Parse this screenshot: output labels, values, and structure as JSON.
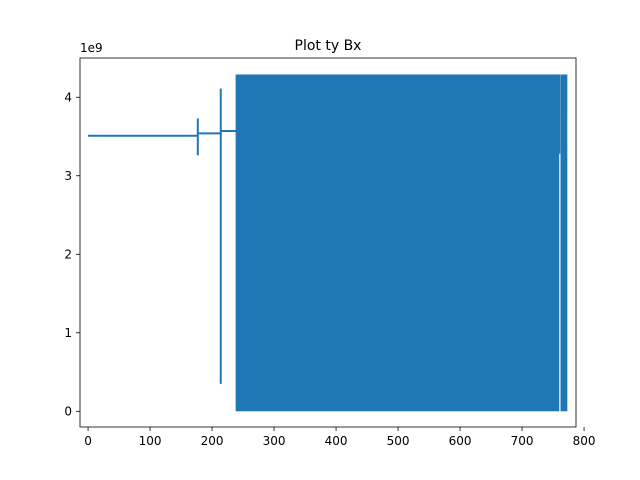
{
  "chart_data": {
    "type": "line",
    "title": "Plot ty Bx",
    "xlabel": "",
    "ylabel": "",
    "y_multiplier_label": "1e9",
    "xlim": [
      -13,
      787
    ],
    "ylim": [
      -0.2,
      4.5
    ],
    "xticks": [
      0,
      100,
      200,
      300,
      400,
      500,
      600,
      700,
      800
    ],
    "yticks": [
      0,
      1,
      2,
      3,
      4
    ],
    "xtick_labels": [
      "0",
      "100",
      "200",
      "300",
      "400",
      "500",
      "600",
      "700",
      "800"
    ],
    "ytick_labels": [
      "0",
      "1",
      "2",
      "3",
      "4"
    ],
    "grid": false,
    "line_color": "#1f77b4",
    "series": [
      {
        "segments": [
          {
            "kind": "flat",
            "x_start": 0,
            "x_end": 177,
            "y": 3.51
          },
          {
            "kind": "spike",
            "x": 177,
            "y_min": 3.26,
            "y_max": 3.73
          },
          {
            "kind": "flat",
            "x_start": 177,
            "x_end": 214,
            "y": 3.54
          },
          {
            "kind": "spike",
            "x": 214,
            "y_min": 0.35,
            "y_max": 4.11
          },
          {
            "kind": "flat",
            "x_start": 214,
            "x_end": 240,
            "y": 3.57
          },
          {
            "kind": "dense_band",
            "x_start": 238,
            "x_end": 760,
            "y_min": 0.0,
            "y_max": 4.29
          },
          {
            "kind": "spike",
            "x": 760,
            "y_min": 3.28,
            "y_max": 4.29
          },
          {
            "kind": "dense_band",
            "x_start": 762,
            "x_end": 773,
            "y_min": 0.0,
            "y_max": 4.29
          },
          {
            "kind": "spike",
            "x": 771,
            "y_min": 3.8,
            "y_max": 4.29
          }
        ]
      }
    ]
  }
}
